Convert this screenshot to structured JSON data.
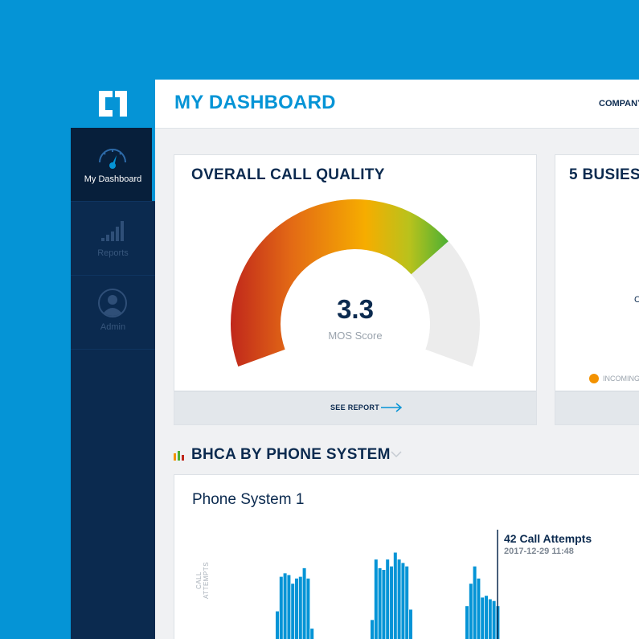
{
  "app": {
    "title": "MY DASHBOARD",
    "company_label": "COMPANY"
  },
  "sidebar": {
    "items": [
      {
        "label": "My Dashboard",
        "icon": "speedometer-icon",
        "active": true
      },
      {
        "label": "Reports",
        "icon": "bar-chart-icon",
        "active": false
      },
      {
        "label": "Admin",
        "icon": "user-icon",
        "active": false
      }
    ]
  },
  "cards": {
    "call_quality": {
      "title": "OVERALL CALL QUALITY",
      "score": "3.3",
      "score_label": "MOS Score",
      "score_value": 3.3,
      "gauge_fill_fraction": 0.72,
      "footer_link": "SEE REPORT"
    },
    "busiest": {
      "title": "5 BUSIES",
      "axis_letter": "C",
      "legend_incoming": "INCOMING",
      "legend_color": "#f39200"
    }
  },
  "bhca": {
    "section_title": "BHCA BY PHONE SYSTEM",
    "system_title": "Phone System 1",
    "ylabel": "CALL ATTEMPTS",
    "tooltip_title": "42 Call Attempts",
    "tooltip_time": "2017-12-29 11:48"
  },
  "chart_data": {
    "type": "bar",
    "title": "Phone System 1",
    "ylabel": "CALL ATTEMPTS",
    "series": [
      {
        "values": [
          16,
          36,
          38,
          37,
          32,
          35,
          36,
          41,
          35,
          6
        ]
      },
      {
        "values": [
          11,
          46,
          41,
          40,
          46,
          42,
          50,
          46,
          44,
          42,
          17
        ]
      },
      {
        "values": [
          19,
          32,
          42,
          35,
          24,
          25,
          23,
          22,
          19
        ]
      }
    ],
    "highlight": {
      "value": 42,
      "time": "2017-12-29 11:48"
    },
    "colors": {
      "bar": "#0594d6",
      "highlight_line": "#0b2a4f"
    }
  }
}
